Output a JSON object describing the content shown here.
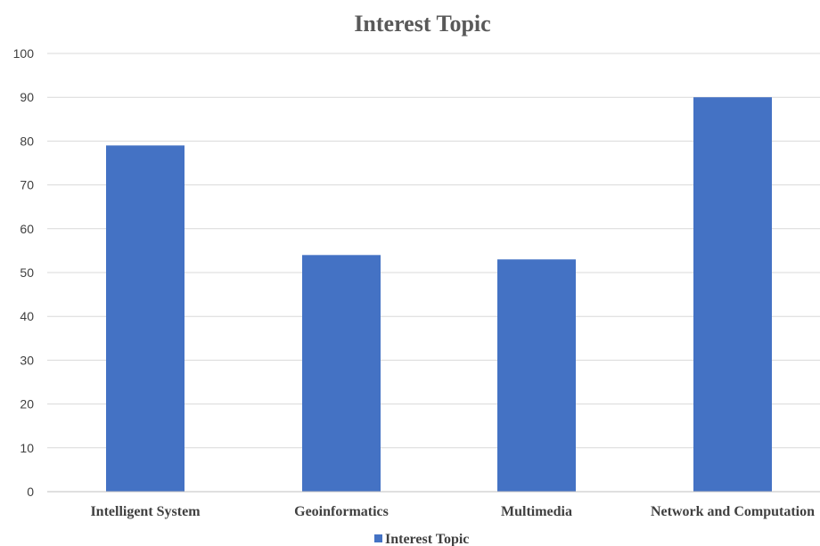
{
  "chart_data": {
    "type": "bar",
    "title": "Interest Topic",
    "categories": [
      "Intelligent System",
      "Geoinformatics",
      "Multimedia",
      "Network and Computation"
    ],
    "series": [
      {
        "name": "Interest Topic",
        "values": [
          79,
          54,
          53,
          90
        ],
        "color": "#4472C4"
      }
    ],
    "ylim": [
      0,
      100
    ],
    "yticks": [
      0,
      10,
      20,
      30,
      40,
      50,
      60,
      70,
      80,
      90,
      100
    ],
    "grid": true,
    "legend": "bottom"
  }
}
